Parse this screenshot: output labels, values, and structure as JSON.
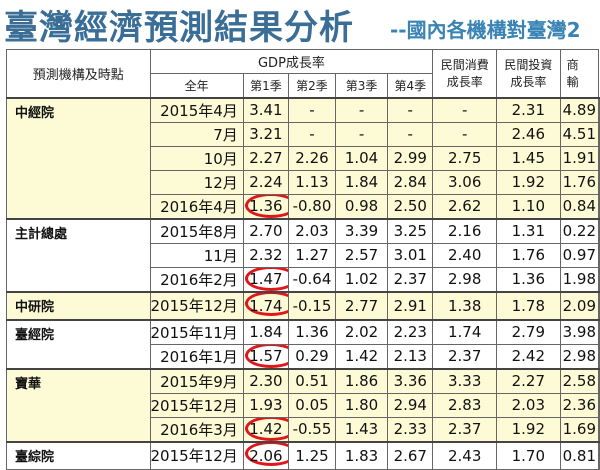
{
  "title": {
    "main": "臺灣經濟預測結果分析",
    "sub": "--國內各機構對臺灣2"
  },
  "table": {
    "header": {
      "org_period": "預測機構及時點",
      "gdp_group": "GDP成長率",
      "gdp_cols": [
        "全年",
        "第1季",
        "第2季",
        "第3季",
        "第4季"
      ],
      "consumption_line1": "民間消費",
      "consumption_line2": "成長率",
      "investment_line1": "民間投資",
      "investment_line2": "成長率",
      "extra_line1": "商",
      "extra_line2": "輸"
    },
    "groups": [
      {
        "org": "中經院",
        "rows": [
          {
            "date": "2015年4月",
            "fy": "3.41",
            "q1": "-",
            "q2": "-",
            "q3": "-",
            "q4": "-",
            "cons": "2.31",
            "inv": "4.89",
            "circled": false
          },
          {
            "date": "7月",
            "fy": "3.21",
            "q1": "-",
            "q2": "-",
            "q3": "-",
            "q4": "-",
            "cons": "2.46",
            "inv": "4.51",
            "circled": false
          },
          {
            "date": "10月",
            "fy": "2.27",
            "q1": "2.26",
            "q2": "1.04",
            "q3": "2.99",
            "q4": "2.75",
            "cons": "1.45",
            "inv": "1.91",
            "circled": false
          },
          {
            "date": "12月",
            "fy": "2.24",
            "q1": "1.13",
            "q2": "1.84",
            "q3": "2.84",
            "q4": "3.06",
            "cons": "1.92",
            "inv": "1.76",
            "circled": false
          },
          {
            "date": "2016年4月",
            "fy": "1.36",
            "q1": "-0.80",
            "q2": "0.98",
            "q3": "2.50",
            "q4": "2.62",
            "cons": "1.10",
            "inv": "0.84",
            "circled": true
          }
        ]
      },
      {
        "org": "主計總處",
        "rows": [
          {
            "date": "2015年8月",
            "fy": "2.70",
            "q1": "2.03",
            "q2": "3.39",
            "q3": "3.25",
            "q4": "2.16",
            "cons": "1.31",
            "inv": "0.22",
            "circled": false
          },
          {
            "date": "11月",
            "fy": "2.32",
            "q1": "1.27",
            "q2": "2.57",
            "q3": "3.01",
            "q4": "2.40",
            "cons": "1.76",
            "inv": "0.97",
            "circled": false
          },
          {
            "date": "2016年2月",
            "fy": "1.47",
            "q1": "-0.64",
            "q2": "1.02",
            "q3": "2.37",
            "q4": "2.98",
            "cons": "1.36",
            "inv": "1.98",
            "circled": true
          }
        ]
      },
      {
        "org": "中研院",
        "rows": [
          {
            "date": "2015年12月",
            "fy": "1.74",
            "q1": "-0.15",
            "q2": "2.77",
            "q3": "2.91",
            "q4": "1.38",
            "cons": "1.78",
            "inv": "2.09",
            "circled": true
          }
        ]
      },
      {
        "org": "臺經院",
        "rows": [
          {
            "date": "2015年11月",
            "fy": "1.84",
            "q1": "1.36",
            "q2": "2.02",
            "q3": "2.23",
            "q4": "1.74",
            "cons": "2.79",
            "inv": "3.98",
            "circled": false
          },
          {
            "date": "2016年1月",
            "fy": "1.57",
            "q1": "0.29",
            "q2": "1.42",
            "q3": "2.13",
            "q4": "2.37",
            "cons": "2.42",
            "inv": "2.98",
            "circled": true
          }
        ]
      },
      {
        "org": "寶華",
        "rows": [
          {
            "date": "2015年9月",
            "fy": "2.30",
            "q1": "0.51",
            "q2": "1.86",
            "q3": "3.36",
            "q4": "3.33",
            "cons": "2.27",
            "inv": "2.58",
            "circled": false
          },
          {
            "date": "2015年12月",
            "fy": "1.93",
            "q1": "0.05",
            "q2": "1.80",
            "q3": "2.94",
            "q4": "2.83",
            "cons": "2.03",
            "inv": "2.36",
            "circled": false
          },
          {
            "date": "2016年3月",
            "fy": "1.42",
            "q1": "-0.55",
            "q2": "1.43",
            "q3": "2.33",
            "q4": "2.37",
            "cons": "1.92",
            "inv": "1.69",
            "circled": true
          }
        ]
      },
      {
        "org": "臺綜院",
        "rows": [
          {
            "date": "2015年12月",
            "fy": "2.06",
            "q1": "1.25",
            "q2": "1.83",
            "q3": "2.67",
            "q4": "2.43",
            "cons": "1.70",
            "inv": "0.81",
            "circled": true
          }
        ]
      }
    ]
  },
  "colors": {
    "title": "#3a6e96",
    "subtitle": "#3a84b5",
    "highlight_row": "#fdfbd6",
    "circle": "#e0161b"
  }
}
